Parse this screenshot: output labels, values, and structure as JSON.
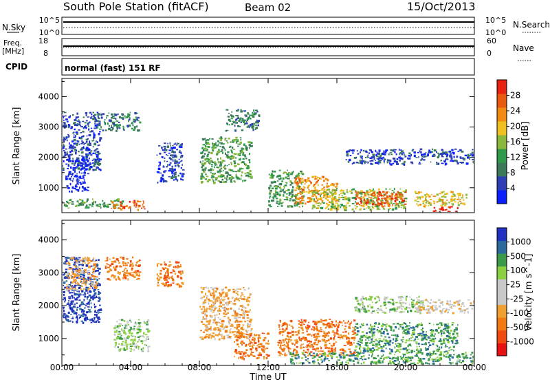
{
  "header": {
    "title": "South Pole Station (fitACF)",
    "beam": "Beam 02",
    "date": "15/Oct/2013"
  },
  "nsky_panel": {
    "left_label": "N.Sky",
    "left_ticks": [
      "10^5",
      "10^0"
    ],
    "right_ticks": [
      "10^5",
      "10^0"
    ],
    "right_label": "N.Search"
  },
  "freq_panel": {
    "left_label": [
      "Freq.",
      "[MHz]"
    ],
    "left_ticks": [
      "18",
      "8"
    ],
    "right_ticks": [
      "60",
      "0"
    ],
    "right_label": "Nave"
  },
  "cpid": {
    "label": "CPID",
    "value": "normal (fast) 151 RF"
  },
  "time_axis": {
    "label": "Time UT",
    "ticks": [
      "00:00",
      "04:00",
      "08:00",
      "12:00",
      "16:00",
      "20:00",
      "00:00"
    ]
  },
  "colors": {
    "power": [
      "#0a1fff",
      "#2e3fb5",
      "#3a7a5a",
      "#2f9a4a",
      "#8ab83a",
      "#f0c020",
      "#f08a10",
      "#e85a10",
      "#e82010"
    ],
    "velocity": [
      "#e81010",
      "#f04a10",
      "#f07a10",
      "#f0a030",
      "#c8c8c8",
      "#c8c8c8",
      "#8ad040",
      "#3a9a4a",
      "#2a6a9a",
      "#2030c0"
    ]
  },
  "chart_data": [
    {
      "type": "heatmap",
      "title": "",
      "xlabel": "",
      "ylabel": "Slant Range [km]",
      "xlim": [
        0,
        24
      ],
      "ylim": [
        180,
        4600
      ],
      "yticks": [
        1000,
        2000,
        3000,
        4000
      ],
      "colorbar": {
        "label": "Power [dB]",
        "ticks": [
          "4",
          "8",
          "12",
          "16",
          "20",
          "24",
          "28"
        ]
      },
      "regions": [
        {
          "t": [
            0.0,
            2.2
          ],
          "r": [
            1600,
            3500
          ],
          "level": 1
        },
        {
          "t": [
            0.2,
            1.5
          ],
          "r": [
            900,
            2000
          ],
          "level": 0
        },
        {
          "t": [
            0.0,
            3.5
          ],
          "r": [
            350,
            650
          ],
          "level": 3
        },
        {
          "t": [
            2.8,
            4.8
          ],
          "r": [
            300,
            600
          ],
          "level": 7
        },
        {
          "t": [
            2.0,
            4.5
          ],
          "r": [
            2900,
            3500
          ],
          "level": 2
        },
        {
          "t": [
            5.5,
            7.0
          ],
          "r": [
            1200,
            2500
          ],
          "level": 1
        },
        {
          "t": [
            8.0,
            11.0
          ],
          "r": [
            1200,
            2700
          ],
          "level": 3
        },
        {
          "t": [
            9.5,
            11.5
          ],
          "r": [
            2900,
            3600
          ],
          "level": 2
        },
        {
          "t": [
            12.0,
            14.0
          ],
          "r": [
            400,
            1600
          ],
          "level": 3
        },
        {
          "t": [
            13.5,
            16.0
          ],
          "r": [
            500,
            1400
          ],
          "level": 6
        },
        {
          "t": [
            14.5,
            20.0
          ],
          "r": [
            300,
            1000
          ],
          "level": 4
        },
        {
          "t": [
            17.0,
            20.0
          ],
          "r": [
            400,
            900
          ],
          "level": 7
        },
        {
          "t": [
            16.5,
            24.0
          ],
          "r": [
            1800,
            2300
          ],
          "level": 1
        },
        {
          "t": [
            20.5,
            23.5
          ],
          "r": [
            400,
            900
          ],
          "level": 5
        },
        {
          "t": [
            21.5,
            23.0
          ],
          "r": [
            200,
            400
          ],
          "level": 8
        }
      ]
    },
    {
      "type": "heatmap",
      "title": "",
      "xlabel": "Time UT",
      "ylabel": "Slant Range [km]",
      "xlim": [
        0,
        24
      ],
      "ylim": [
        180,
        4600
      ],
      "yticks": [
        1000,
        2000,
        3000,
        4000
      ],
      "colorbar": {
        "label": "Velocity [m s^-1]",
        "ticks": [
          "-1000",
          "-500",
          "-100",
          "-25",
          "25",
          "100",
          "500",
          "1000"
        ]
      },
      "regions": [
        {
          "t": [
            0.0,
            2.2
          ],
          "r": [
            1500,
            3500
          ],
          "level": 9
        },
        {
          "t": [
            0.2,
            2.0
          ],
          "r": [
            2500,
            3500
          ],
          "level": 3
        },
        {
          "t": [
            2.5,
            4.5
          ],
          "r": [
            2800,
            3500
          ],
          "level": 2
        },
        {
          "t": [
            3.0,
            5.0
          ],
          "r": [
            600,
            1600
          ],
          "level": 6
        },
        {
          "t": [
            5.5,
            7.0
          ],
          "r": [
            2600,
            3400
          ],
          "level": 2
        },
        {
          "t": [
            8.0,
            11.0
          ],
          "r": [
            1000,
            2600
          ],
          "level": 3
        },
        {
          "t": [
            10.0,
            12.0
          ],
          "r": [
            400,
            1200
          ],
          "level": 2
        },
        {
          "t": [
            12.5,
            17.0
          ],
          "r": [
            500,
            1600
          ],
          "level": 2
        },
        {
          "t": [
            13.0,
            24.0
          ],
          "r": [
            250,
            600
          ],
          "level": 7
        },
        {
          "t": [
            17.0,
            21.0
          ],
          "r": [
            1800,
            2300
          ],
          "level": 6
        },
        {
          "t": [
            20.5,
            24.0
          ],
          "r": [
            1800,
            2200
          ],
          "level": 4
        },
        {
          "t": [
            17.0,
            23.0
          ],
          "r": [
            600,
            1500
          ],
          "level": 7
        }
      ]
    }
  ]
}
